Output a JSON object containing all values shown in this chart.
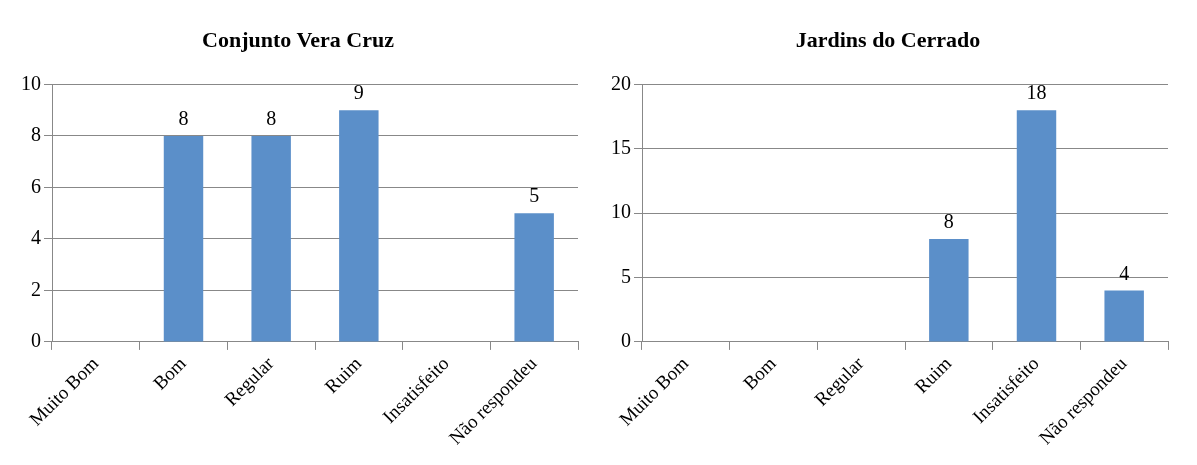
{
  "chart_data": [
    {
      "type": "bar",
      "title": "Conjunto Vera Cruz",
      "categories": [
        "Muito Bom",
        "Bom",
        "Regular",
        "Ruim",
        "Insatisfeito",
        "Não respondeu"
      ],
      "values": [
        0,
        8,
        8,
        9,
        0,
        5
      ],
      "value_labels": [
        null,
        "8",
        "8",
        "9",
        null,
        "5"
      ],
      "color": "#5b8fc9",
      "ylim": [
        0,
        10
      ],
      "yticks": [
        0,
        2,
        4,
        6,
        8,
        10
      ],
      "grid": "y"
    },
    {
      "type": "bar",
      "title": "Jardins do Cerrado",
      "categories": [
        "Muito Bom",
        "Bom",
        "Regular",
        "Ruim",
        "Insatisfeito",
        "Não respondeu"
      ],
      "values": [
        0,
        0,
        0,
        8,
        18,
        4
      ],
      "value_labels": [
        null,
        null,
        null,
        "8",
        "18",
        "4"
      ],
      "color": "#5b8fc9",
      "ylim": [
        0,
        20
      ],
      "yticks": [
        0,
        5,
        10,
        15,
        20
      ],
      "grid": "y"
    }
  ]
}
